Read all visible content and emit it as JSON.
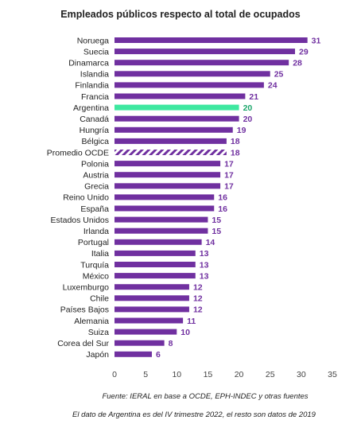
{
  "chart_data": {
    "type": "bar",
    "orientation": "horizontal",
    "title": "Empleados públicos respecto al total de ocupados",
    "categories": [
      "Noruega",
      "Suecia",
      "Dinamarca",
      "Islandia",
      "Finlandia",
      "Francia",
      "Argentina",
      "Canadá",
      "Hungría",
      "Bélgica",
      "Promedio OCDE",
      "Polonia",
      "Austria",
      "Grecia",
      "Reino Unido",
      "España",
      "Estados Unidos",
      "Irlanda",
      "Portugal",
      "Italia",
      "Turquía",
      "México",
      "Luxemburgo",
      "Chile",
      "Países Bajos",
      "Alemania",
      "Suiza",
      "Corea del Sur",
      "Japón"
    ],
    "values": [
      31,
      29,
      28,
      25,
      24,
      21,
      20,
      20,
      19,
      18,
      18,
      17,
      17,
      17,
      16,
      16,
      15,
      15,
      14,
      13,
      13,
      13,
      12,
      12,
      12,
      11,
      10,
      8,
      6
    ],
    "highlight": {
      "category": "Argentina",
      "color": "#3ee8a0",
      "label_color": "#1aa56a"
    },
    "hatched": {
      "category": "Promedio OCDE"
    },
    "bar_color": "#7030a0",
    "label_color": "#7030a0",
    "xlim": [
      0,
      35
    ],
    "xticks": [
      "0",
      "5",
      "10",
      "15",
      "20",
      "25",
      "30",
      "35"
    ],
    "grid": false
  },
  "notes": {
    "source": "Fuente: IERAL en base a OCDE, EPH-INDEC y otras fuentes",
    "footnote": "El dato de Argentina es del IV trimestre 2022, el resto son datos de 2019"
  }
}
